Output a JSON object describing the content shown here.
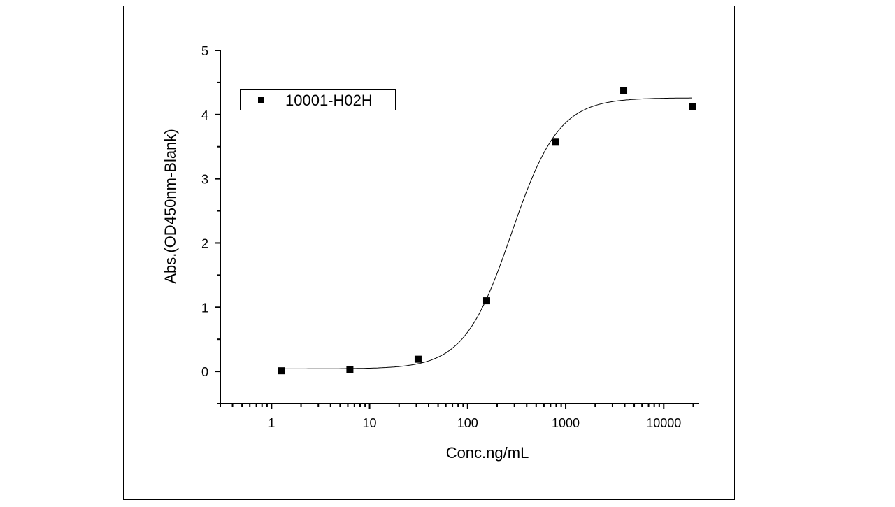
{
  "chart_data": {
    "type": "scatter",
    "title": "",
    "xlabel": "Conc.ng/mL",
    "ylabel": "Abs.(OD450nm-Blank)",
    "xscale": "log",
    "xlim": [
      0.3,
      23000
    ],
    "ylim": [
      -0.5,
      5
    ],
    "xticks": [
      1,
      10,
      100,
      1000,
      10000
    ],
    "xtick_labels": [
      "1",
      "10",
      "100",
      "1000",
      "10000"
    ],
    "yticks": [
      0,
      1,
      2,
      3,
      4,
      5
    ],
    "ytick_labels": [
      "0",
      "1",
      "2",
      "3",
      "4",
      "5"
    ],
    "grid": false,
    "legend": {
      "position": "top-left",
      "entries": [
        "10001-H02H"
      ]
    },
    "series": [
      {
        "name": "10001-H02H",
        "marker": "square",
        "color": "#000000",
        "x": [
          1.26,
          6.3,
          31.25,
          156.25,
          781.25,
          3906.25,
          19531.25
        ],
        "y": [
          0.01,
          0.03,
          0.19,
          1.1,
          3.57,
          4.37,
          4.12
        ]
      }
    ],
    "fit": {
      "type": "4PL",
      "bottom": 0.04,
      "top": 4.26,
      "ec50": 280,
      "hill": 1.8,
      "x_range": [
        1.26,
        19531.25
      ]
    }
  }
}
